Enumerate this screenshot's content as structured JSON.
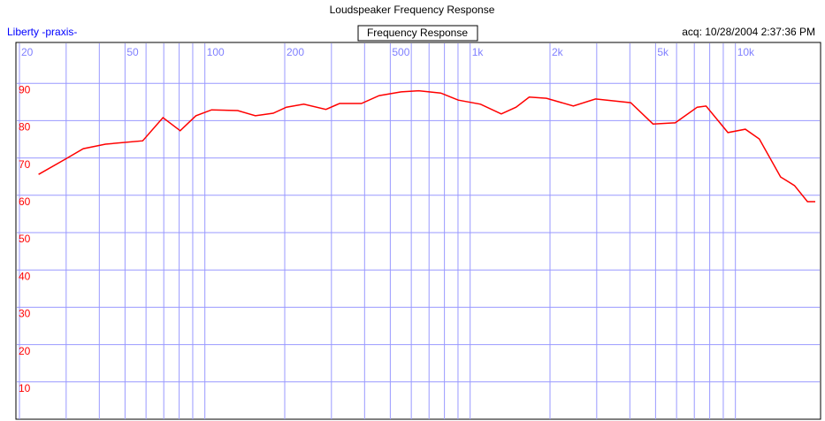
{
  "chart_data": {
    "type": "line",
    "title": "Loudspeaker Frequency Response",
    "subtitle": "Frequency Response",
    "source": "Liberty -praxis-",
    "timestamp": "acq: 10/28/2004 2:37:36 PM",
    "log_x": true,
    "grid": true,
    "xlim": [
      20,
      20000
    ],
    "ylim": [
      0,
      100
    ],
    "xticks": [
      20,
      50,
      100,
      200,
      500,
      {
        "value": 1000,
        "label": "1k"
      },
      {
        "value": 2000,
        "label": "2k"
      },
      {
        "value": 5000,
        "label": "5k"
      },
      {
        "value": 10000,
        "label": "10k"
      }
    ],
    "xminor_ticks": [
      30,
      40,
      60,
      70,
      80,
      90,
      300,
      400,
      600,
      700,
      800,
      900,
      3000,
      4000,
      6000,
      7000,
      8000,
      9000
    ],
    "yticks": [
      10,
      20,
      30,
      40,
      50,
      60,
      70,
      80,
      90
    ],
    "x": [
      23.6,
      29.8,
      34.8,
      42.2,
      58.3,
      69.5,
      80.7,
      92.5,
      106,
      133,
      155,
      181,
      203,
      236,
      286,
      322,
      389,
      454,
      549,
      640,
      775,
      902,
      1094,
      1310,
      1490,
      1670,
      1940,
      2450,
      2970,
      4030,
      4890,
      5930,
      7180,
      7750,
      9370,
      10900,
      12300,
      14800,
      16700,
      18700,
      20000
    ],
    "series": [
      {
        "name": "Frequency Response",
        "color": "#ff0000",
        "values": [
          65.6,
          69.7,
          72.5,
          73.7,
          74.6,
          80.8,
          77.3,
          81.3,
          82.9,
          82.7,
          81.3,
          82,
          83.6,
          84.4,
          83,
          84.6,
          84.6,
          86.7,
          87.7,
          88,
          87.4,
          85.5,
          84.4,
          81.8,
          83.6,
          86.3,
          86,
          83.9,
          85.8,
          84.8,
          79.1,
          79.4,
          83.6,
          83.9,
          76.8,
          77.7,
          75.1,
          64.9,
          62.6,
          58.3,
          58.3
        ]
      }
    ]
  }
}
